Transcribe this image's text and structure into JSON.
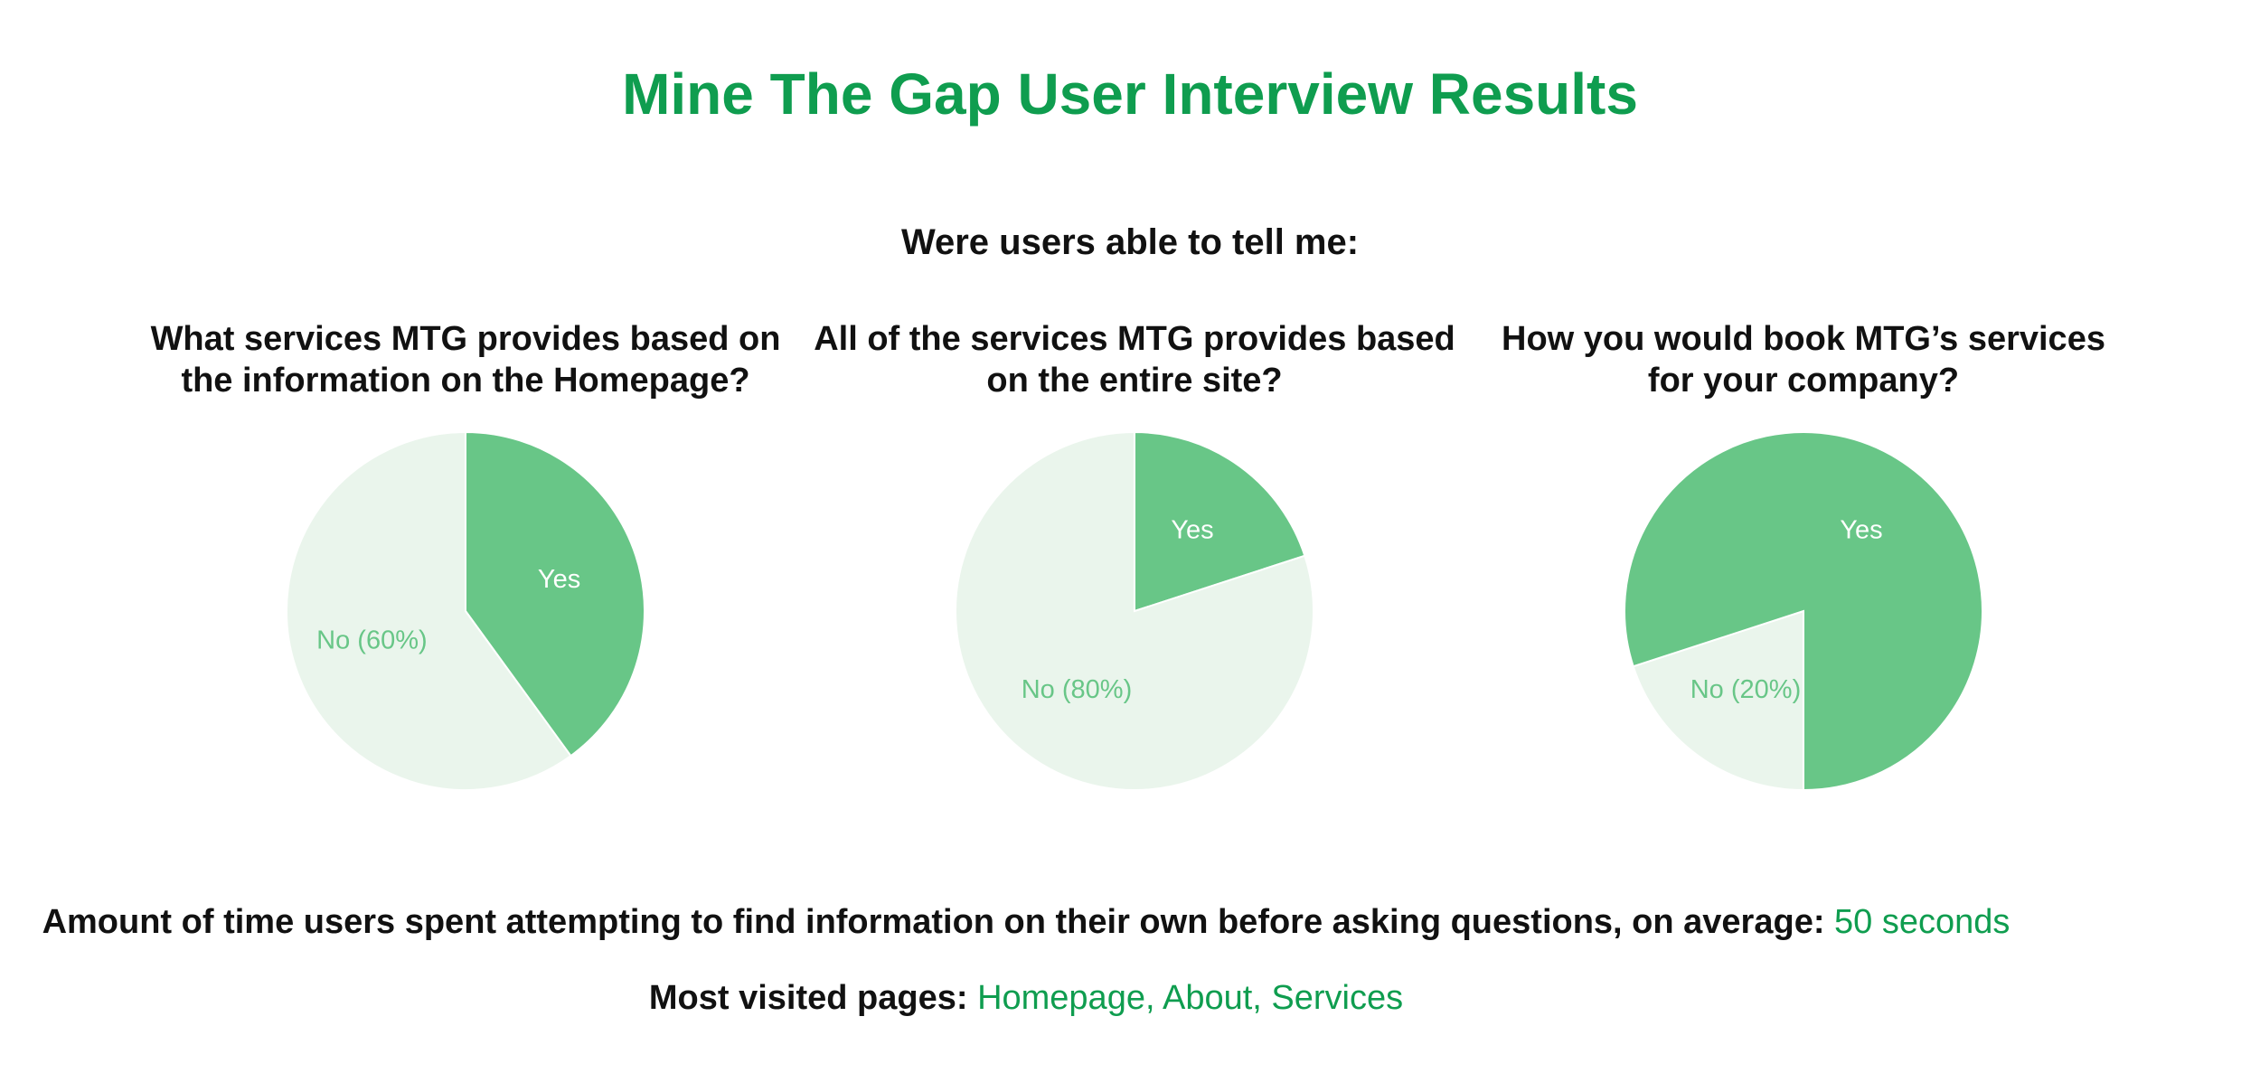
{
  "title": "Mine The Gap User Interview Results",
  "intro": "Were users able to tell me:",
  "colors": {
    "accent": "#0f9d4f",
    "yes_fill": "#68c687",
    "no_fill": "#eaf5ec",
    "yes_text": "#ffffff",
    "no_text": "#68c687"
  },
  "chart_data": [
    {
      "type": "pie",
      "question_line1": "What services MTG provides based on",
      "question_line2": "the information on the Homepage?",
      "slices": [
        {
          "label": "Yes",
          "value": 40,
          "color": "#68c687"
        },
        {
          "label": "No (60%)",
          "value": 60,
          "color": "#eaf5ec"
        }
      ]
    },
    {
      "type": "pie",
      "question_line1": "All of the services MTG provides based",
      "question_line2": "on the entire site?",
      "slices": [
        {
          "label": "Yes",
          "value": 20,
          "color": "#68c687"
        },
        {
          "label": "No (80%)",
          "value": 80,
          "color": "#eaf5ec"
        }
      ]
    },
    {
      "type": "pie",
      "question_line1": "How you would book MTG’s services",
      "question_line2": "for your company?",
      "slices": [
        {
          "label": "No (20%)",
          "value": 20,
          "color": "#eaf5ec"
        },
        {
          "label": "Yes",
          "value": 80,
          "color": "#68c687"
        }
      ],
      "start_at": "bottom"
    }
  ],
  "footer": {
    "time_label": "Amount of time users spent attempting to find information on their own before asking questions, on average: ",
    "time_value": "50 seconds",
    "pages_label": "Most visited pages: ",
    "pages_value": "Homepage, About, Services"
  }
}
